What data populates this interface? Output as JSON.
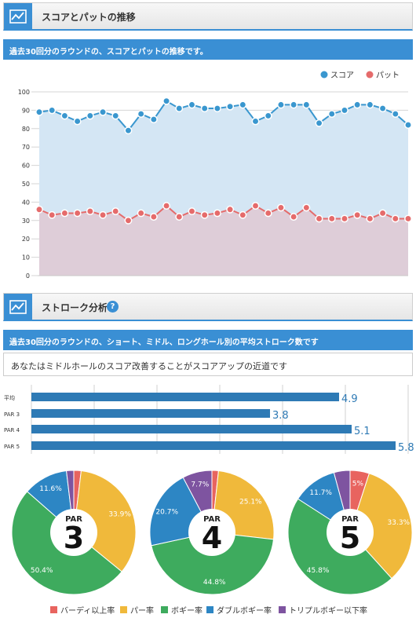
{
  "section1": {
    "title": "スコアとパットの推移",
    "description": "過去30回分のラウンドの、スコアとパットの推移です。"
  },
  "section2": {
    "title": "ストローク分析",
    "help": "?",
    "description": "過去30回分のラウンドの、ショート、ミドル、ロングホール別の平均ストローク数です",
    "advice": "あなたはミドルホールのスコア改善することがスコアアップの近道です"
  },
  "colors": {
    "accent": "#3a8fd4",
    "score": "#3a97cf",
    "putt": "#e56b6b",
    "birdie": "#e8645f",
    "par": "#f0b93b",
    "bogey": "#3eab5e",
    "double": "#2d86c4",
    "triple": "#7e54a0"
  },
  "chart_data": [
    {
      "type": "line",
      "ylim": [
        0,
        100
      ],
      "yticks": [
        0,
        10,
        20,
        30,
        40,
        50,
        60,
        70,
        80,
        90,
        100
      ],
      "grid": true,
      "legend_position": "top-right",
      "series": [
        {
          "name": "スコア",
          "values": [
            89,
            90,
            87,
            84,
            87,
            89,
            87,
            79,
            88,
            85,
            95,
            91,
            93,
            91,
            91,
            92,
            93,
            84,
            87,
            93,
            93,
            93,
            83,
            88,
            90,
            93,
            93,
            91,
            88,
            82
          ]
        },
        {
          "name": "パット",
          "values": [
            36,
            33,
            34,
            34,
            35,
            33,
            35,
            30,
            34,
            32,
            38,
            32,
            35,
            33,
            34,
            36,
            33,
            38,
            34,
            37,
            32,
            37,
            31,
            31,
            31,
            33,
            31,
            34,
            31,
            31
          ]
        }
      ]
    },
    {
      "type": "bar",
      "orientation": "horizontal",
      "categories": [
        "平均",
        "PAR 3",
        "PAR 4",
        "PAR 5"
      ],
      "values": [
        4.9,
        3.8,
        5.1,
        5.8
      ],
      "xlim": [
        0,
        6
      ]
    },
    {
      "type": "pie",
      "center_label": {
        "top": "PAR",
        "big": "3"
      },
      "categories": [
        "バーディ以上率",
        "パー率",
        "ボギー率",
        "ダブルボギー率",
        "トリプルボギー以下率"
      ],
      "values": [
        1.9,
        33.9,
        50.4,
        11.6,
        1.9
      ],
      "labels": [
        "",
        "33.9%",
        "50.4%",
        "11.6%",
        ""
      ]
    },
    {
      "type": "pie",
      "center_label": {
        "top": "PAR",
        "big": "4"
      },
      "categories": [
        "バーディ以上率",
        "パー率",
        "ボギー率",
        "ダブルボギー率",
        "トリプルボギー以下率"
      ],
      "values": [
        1.7,
        25.1,
        44.8,
        20.7,
        7.7
      ],
      "labels": [
        "",
        "25.1%",
        "44.8%",
        "20.7%",
        "7.7%"
      ]
    },
    {
      "type": "pie",
      "center_label": {
        "top": "PAR",
        "big": "5"
      },
      "categories": [
        "バーディ以上率",
        "パー率",
        "ボギー率",
        "ダブルボギー率",
        "トリプルボギー以下率"
      ],
      "values": [
        5,
        33.3,
        45.8,
        11.7,
        4.2
      ],
      "labels": [
        "5%",
        "33.3%",
        "45.8%",
        "11.7%",
        ""
      ]
    }
  ]
}
